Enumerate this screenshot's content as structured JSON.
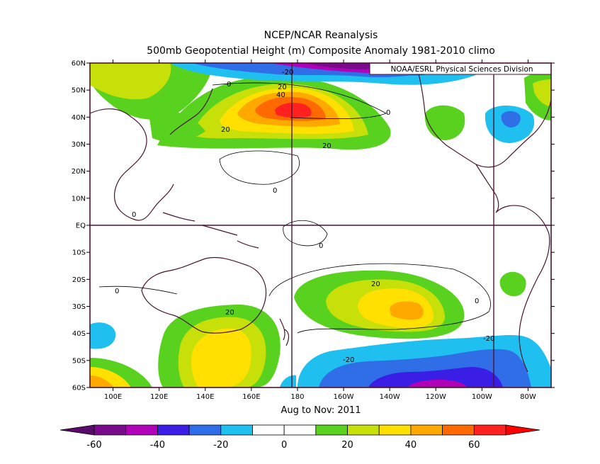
{
  "title_line1": "NCEP/NCAR Reanalysis",
  "title_line2": "500mb Geopotential Height (m) Composite Anomaly 1981-2010 climo",
  "source_label": "NOAA/ESRL Physical Sciences Division",
  "period_label": "Aug to Nov: 2011",
  "lat_labels": [
    "60N",
    "50N",
    "40N",
    "30N",
    "20N",
    "10N",
    "EQ",
    "10S",
    "20S",
    "30S",
    "40S",
    "50S",
    "60S"
  ],
  "lon_labels": [
    "100E",
    "120E",
    "140E",
    "160E",
    "180",
    "160W",
    "140W",
    "120W",
    "100W",
    "80W"
  ],
  "contour_labels": [
    "-20",
    "20",
    "40",
    "0",
    "20",
    "20",
    "0",
    "0",
    "0",
    "0",
    "20",
    "0",
    "-20",
    "-20",
    "20",
    "0"
  ],
  "colorbar": {
    "tick_labels": [
      "-60",
      "-40",
      "-20",
      "0",
      "20",
      "40",
      "60"
    ],
    "colors": [
      "#7a0a8c",
      "#b000b8",
      "#3a1ee6",
      "#2f6ee6",
      "#1fc0f0",
      "#ffffff",
      "#ffffff",
      "#58d21e",
      "#c8e00a",
      "#ffe000",
      "#ffa800",
      "#ff6a00",
      "#ff2020"
    ],
    "left_end_color": "#5a0a6a",
    "right_end_color": "#ff0000"
  },
  "field": {
    "units": "m",
    "contour_interval": 10
  }
}
